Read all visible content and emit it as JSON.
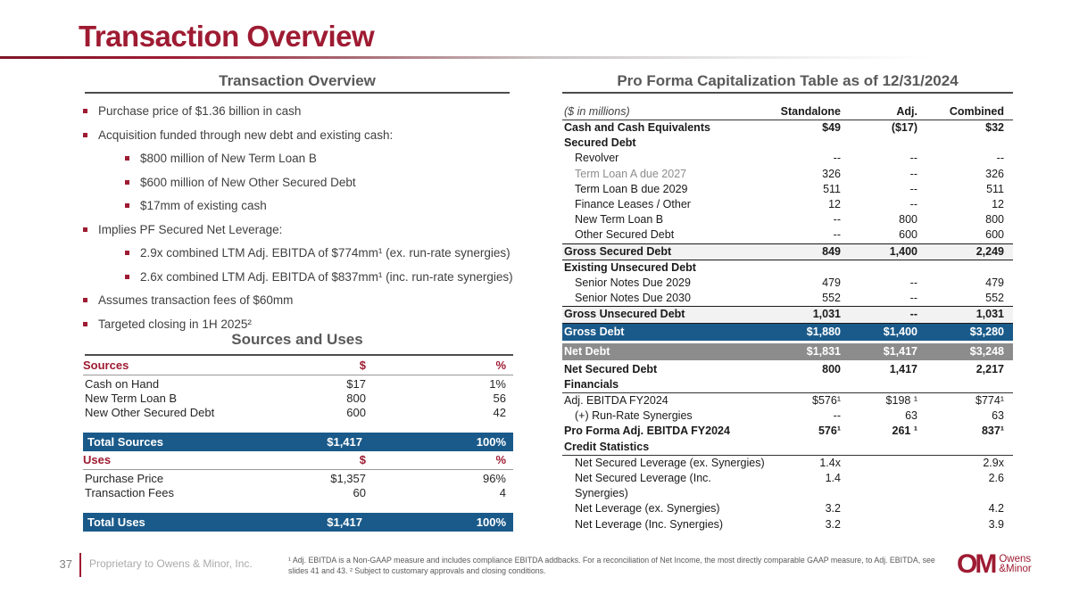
{
  "header": {
    "title": "Transaction Overview"
  },
  "left": {
    "section_title": "Transaction Overview",
    "bullets": [
      {
        "level": 1,
        "text": "Purchase price of $1.36 billion in cash"
      },
      {
        "level": 1,
        "text": "Acquisition funded through new debt and existing cash:"
      },
      {
        "level": 2,
        "text": "$800 million of New Term Loan B"
      },
      {
        "level": 2,
        "text": "$600 million of New Other Secured Debt"
      },
      {
        "level": 2,
        "text": "$17mm of existing cash"
      },
      {
        "level": 1,
        "text": "Implies PF Secured Net Leverage:"
      },
      {
        "level": 2,
        "text": "2.9x combined LTM Adj. EBITDA of $774mm¹ (ex. run-rate synergies)"
      },
      {
        "level": 2,
        "text": "2.6x combined LTM Adj. EBITDA of $837mm¹ (inc. run-rate synergies)"
      },
      {
        "level": 1,
        "text": "Assumes transaction fees of $60mm"
      },
      {
        "level": 1,
        "text": "Targeted closing in 1H 2025²"
      }
    ],
    "sources_uses_title": "Sources and Uses",
    "sources": {
      "col_label": "Sources",
      "col_dollar": "$",
      "col_pct": "%",
      "rows": [
        {
          "label": "Cash on Hand",
          "amount": "$17",
          "pct": "1%"
        },
        {
          "label": "New Term Loan B",
          "amount": "800",
          "pct": "56"
        },
        {
          "label": "New Other Secured Debt",
          "amount": "600",
          "pct": "42"
        }
      ],
      "total": {
        "label": "Total Sources",
        "amount": "$1,417",
        "pct": "100%"
      }
    },
    "uses": {
      "col_label": "Uses",
      "col_dollar": "$",
      "col_pct": "%",
      "rows": [
        {
          "label": "Purchase Price",
          "amount": "$1,357",
          "pct": "96%"
        },
        {
          "label": "Transaction Fees",
          "amount": "60",
          "pct": "4"
        }
      ],
      "total": {
        "label": "Total Uses",
        "amount": "$1,417",
        "pct": "100%"
      }
    }
  },
  "right": {
    "section_title": "Pro Forma Capitalization Table as of 12/31/2024",
    "units_label": "($ in millions)",
    "col_standalone": "Standalone",
    "col_adj": "Adj.",
    "col_combined": "Combined",
    "rows": [
      {
        "label": "Cash and Cash Equivalents",
        "s": "$49",
        "a": "($17)",
        "c": "$32"
      },
      {
        "label": "Secured Debt",
        "s": "",
        "a": "",
        "c": ""
      },
      {
        "label": "Revolver",
        "s": "--",
        "a": "--",
        "c": "--"
      },
      {
        "label": "Term Loan A due 2027",
        "s": "326",
        "a": "--",
        "c": "326"
      },
      {
        "label": "Term Loan B due 2029",
        "s": "511",
        "a": "--",
        "c": "511"
      },
      {
        "label": "Finance Leases / Other",
        "s": "12",
        "a": "--",
        "c": "12"
      },
      {
        "label": "New Term Loan B",
        "s": "--",
        "a": "800",
        "c": "800"
      },
      {
        "label": "Other Secured Debt",
        "s": "--",
        "a": "600",
        "c": "600"
      },
      {
        "label": "Gross Secured Debt",
        "s": "849",
        "a": "1,400",
        "c": "2,249"
      },
      {
        "label": "Existing Unsecured Debt",
        "s": "",
        "a": "",
        "c": ""
      },
      {
        "label": "Senior Notes Due 2029",
        "s": "479",
        "a": "--",
        "c": "479"
      },
      {
        "label": "Senior Notes Due 2030",
        "s": "552",
        "a": "--",
        "c": "552"
      },
      {
        "label": "Gross Unsecured Debt",
        "s": "1,031",
        "a": "--",
        "c": "1,031"
      },
      {
        "label": "Gross Debt",
        "s": "$1,880",
        "a": "$1,400",
        "c": "$3,280"
      },
      {
        "label": "Net Debt",
        "s": "$1,831",
        "a": "$1,417",
        "c": "$3,248"
      },
      {
        "label": "Net Secured Debt",
        "s": "800",
        "a": "1,417",
        "c": "2,217"
      },
      {
        "label": "Financials",
        "s": "",
        "a": "",
        "c": ""
      },
      {
        "label": "Adj. EBITDA FY2024",
        "s": "$576¹",
        "a": "$198 ¹",
        "c": "$774¹"
      },
      {
        "label": "(+) Run-Rate Synergies",
        "s": "--",
        "a": "63",
        "c": "63"
      },
      {
        "label": "Pro Forma Adj. EBITDA FY2024",
        "s": "576¹",
        "a": "261 ¹",
        "c": "837¹"
      },
      {
        "label": "Credit Statistics",
        "s": "",
        "a": "",
        "c": ""
      },
      {
        "label": "Net Secured Leverage (ex. Synergies)",
        "s": "1.4x",
        "a": "",
        "c": "2.9x"
      },
      {
        "label": "Net Secured Leverage (Inc. Synergies)",
        "s": "1.4",
        "a": "",
        "c": "2.6"
      },
      {
        "label": "Net Leverage (ex. Synergies)",
        "s": "3.2",
        "a": "",
        "c": "4.2"
      },
      {
        "label": "Net Leverage (Inc. Synergies)",
        "s": "3.2",
        "a": "",
        "c": "3.9"
      }
    ]
  },
  "footer": {
    "page_number": "37",
    "proprietary": "Proprietary to Owens & Minor, Inc.",
    "footnote": "¹ Adj. EBITDA is a Non-GAAP measure and includes compliance EBITDA addbacks. For a reconciliation of Net Income, the most directly comparable GAAP measure, to Adj. EBITDA,  see slides 41 and 43. ² Subject to customary approvals and closing conditions.",
    "logo_monogram": "OM",
    "logo_line1": "Owens",
    "logo_line2": "&Minor"
  },
  "colors": {
    "brand_maroon": "#9E1B32",
    "total_blue": "#1A5A8A",
    "net_debt_gray": "#8C8C8C",
    "subtotal_bg": "#F2F2F2",
    "section_header_gray": "#595959"
  }
}
